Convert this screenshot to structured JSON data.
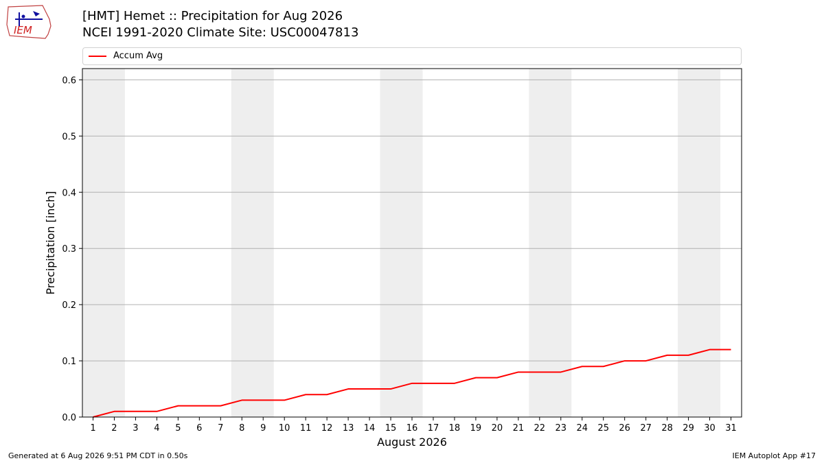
{
  "header": {
    "title_line1": "[HMT] Hemet :: Precipitation for Aug 2026",
    "title_line2": "NCEI 1991-2020 Climate Site: USC00047813"
  },
  "logo": {
    "text": "IEM",
    "icon": "iem-logo-icon"
  },
  "legend": {
    "label": "Accum Avg",
    "color": "#ff0000"
  },
  "footer": {
    "left": "Generated at 6 Aug 2026 9:51 PM CDT in 0.50s",
    "right": "IEM Autoplot App #17"
  },
  "chart_data": {
    "type": "line",
    "xlabel": "August 2026",
    "ylabel": "Precipitation [inch]",
    "x": [
      1,
      2,
      3,
      4,
      5,
      6,
      7,
      8,
      9,
      10,
      11,
      12,
      13,
      14,
      15,
      16,
      17,
      18,
      19,
      20,
      21,
      22,
      23,
      24,
      25,
      26,
      27,
      28,
      29,
      30,
      31
    ],
    "xlim": [
      0.5,
      31.5
    ],
    "ylim": [
      0,
      0.62
    ],
    "yticks": [
      0.0,
      0.1,
      0.2,
      0.3,
      0.4,
      0.5,
      0.6
    ],
    "ytick_labels": [
      "0.0",
      "0.1",
      "0.2",
      "0.3",
      "0.4",
      "0.5",
      "0.6"
    ],
    "grid": "horizontal",
    "weekend_shading": [
      [
        1,
        2
      ],
      [
        8,
        9
      ],
      [
        15,
        16
      ],
      [
        22,
        23
      ],
      [
        29,
        30
      ]
    ],
    "weekend_color": "#eeeeee",
    "series": [
      {
        "name": "Accum Avg",
        "color": "#ff0000",
        "values": [
          0.0,
          0.01,
          0.01,
          0.01,
          0.02,
          0.02,
          0.02,
          0.03,
          0.03,
          0.03,
          0.04,
          0.04,
          0.05,
          0.05,
          0.05,
          0.06,
          0.06,
          0.06,
          0.07,
          0.07,
          0.08,
          0.08,
          0.08,
          0.09,
          0.09,
          0.1,
          0.1,
          0.11,
          0.11,
          0.12,
          0.12
        ]
      }
    ]
  }
}
